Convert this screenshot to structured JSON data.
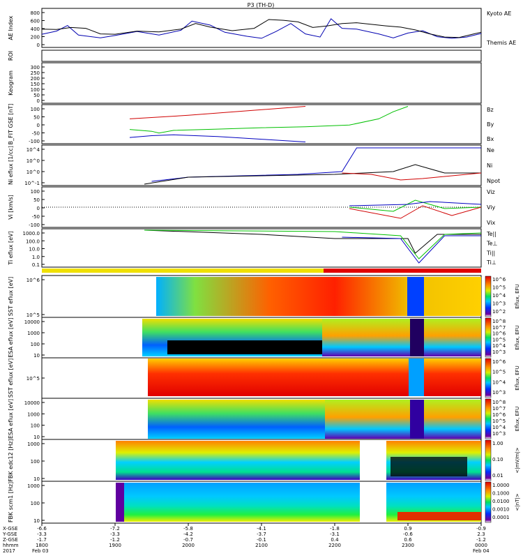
{
  "chart_data": {
    "type": "multi-panel time series",
    "title": "P3 (TH-D)",
    "x_range_hours": [
      18.0,
      24.0
    ],
    "x_ticks": [
      {
        "hhmm": "1800",
        "x_gse": "-6.6",
        "y_gse": "-3.3",
        "z_gse": "-1.7"
      },
      {
        "hhmm": "1900",
        "x_gse": "-7.2",
        "y_gse": "-3.3",
        "z_gse": "-1.2"
      },
      {
        "hhmm": "2000",
        "x_gse": "-5.8",
        "y_gse": "-4.2",
        "z_gse": "-0.7"
      },
      {
        "hhmm": "2100",
        "x_gse": "-4.1",
        "y_gse": "-3.7",
        "z_gse": "-0.1"
      },
      {
        "hhmm": "2200",
        "x_gse": "-1.8",
        "y_gse": "-3.1",
        "z_gse": "0.4"
      },
      {
        "hhmm": "2300",
        "x_gse": "0.9",
        "y_gse": "-0.6",
        "z_gse": "0.6"
      },
      {
        "hhmm": "0000",
        "x_gse": "-0.9",
        "y_gse": "2.3",
        "z_gse": "-1.2"
      }
    ],
    "x_footer": {
      "labels": [
        "X-GSE",
        "Y-GSE",
        "Z-GSE",
        "hhmm"
      ],
      "year": "2017",
      "start_date": "Feb 03",
      "end_date": "Feb 04"
    },
    "panels": [
      {
        "id": "ae",
        "ylabel": "AE Index",
        "yticks": [
          "800",
          "600",
          "400",
          "200",
          "0"
        ],
        "series": [
          {
            "name": "Kyoto AE",
            "color": "#0000b0",
            "x": [
              18.0,
              18.2,
              18.35,
              18.5,
              18.8,
              19.0,
              19.3,
              19.6,
              19.9,
              20.05,
              20.3,
              20.5,
              20.8,
              21.0,
              21.2,
              21.4,
              21.6,
              21.8,
              21.95,
              22.1,
              22.3,
              22.6,
              22.8,
              23.0,
              23.2,
              23.4,
              23.6,
              23.8,
              24.0
            ],
            "y": [
              250,
              330,
              470,
              230,
              160,
              220,
              320,
              230,
              350,
              580,
              480,
              300,
              200,
              150,
              320,
              520,
              260,
              180,
              640,
              400,
              380,
              260,
              160,
              280,
              340,
              190,
              150,
              180,
              270
            ]
          },
          {
            "name": "Themis AE",
            "color": "#000000",
            "x": [
              18.0,
              18.2,
              18.4,
              18.6,
              18.8,
              19.0,
              19.3,
              19.6,
              19.9,
              20.1,
              20.3,
              20.6,
              20.9,
              21.1,
              21.3,
              21.5,
              21.7,
              21.9,
              22.1,
              22.3,
              22.5,
              22.7,
              22.9,
              23.1,
              23.3,
              23.5,
              23.7,
              23.9,
              24.0
            ],
            "y": [
              380,
              370,
              420,
              400,
              260,
              250,
              330,
              310,
              380,
              520,
              430,
              340,
              400,
              620,
              600,
              560,
              420,
              460,
              520,
              540,
              500,
              460,
              430,
              360,
              260,
              180,
              170,
              260,
              300
            ]
          }
        ]
      },
      {
        "id": "roi",
        "ylabel": "ROI"
      },
      {
        "id": "keogram",
        "ylabel": "Keogram",
        "yticks": [
          "300",
          "250",
          "200",
          "150",
          "100",
          "50",
          "0"
        ]
      },
      {
        "id": "bfield",
        "ylabel": "B_FIT GSE [nT]",
        "yticks": [
          "100",
          "50",
          "0",
          "-50",
          "-100"
        ],
        "series": [
          {
            "name": "Bz",
            "color": "#d00000",
            "x": [
              19.2,
              20.0,
              20.8,
              21.6
            ],
            "y": [
              30,
              50,
              75,
              100
            ]
          },
          {
            "name": "By",
            "color": "#00c000",
            "x": [
              19.2,
              19.5,
              19.6,
              19.8,
              20.4,
              21.0,
              21.6,
              22.2,
              22.6,
              22.8,
              23.0
            ],
            "y": [
              -30,
              -40,
              -50,
              -35,
              -28,
              -20,
              -15,
              -5,
              30,
              70,
              100
            ]
          },
          {
            "name": "Bx",
            "color": "#0000c0",
            "x": [
              19.2,
              19.5,
              19.8,
              20.4,
              21.0,
              21.6
            ],
            "y": [
              -75,
              -65,
              -60,
              -70,
              -85,
              -100
            ]
          }
        ]
      },
      {
        "id": "density",
        "ylabel": "Ni eflux [1/cc]",
        "yticks": [
          "10^4",
          "10^0",
          "10^0",
          "10^-1"
        ],
        "series": [
          {
            "name": "Ne",
            "color": "#d00000"
          },
          {
            "name": "Ni",
            "color": "#000000"
          },
          {
            "name": "Npot",
            "color": "#0000c0"
          }
        ]
      },
      {
        "id": "velocity",
        "ylabel": "Vi [km/s]",
        "yticks": [
          "100",
          "50",
          "0",
          "-50",
          "-100"
        ],
        "series": [
          {
            "name": "Viz",
            "color": "#d00000"
          },
          {
            "name": "Viy",
            "color": "#00c000"
          },
          {
            "name": "Vix",
            "color": "#0000c0"
          }
        ]
      },
      {
        "id": "temperature",
        "ylabel": "Ti eflux [eV]",
        "yticks": [
          "1000.0",
          "100.0",
          "10.0",
          "1.0",
          "0.1"
        ],
        "series": [
          {
            "name": "Te||",
            "color": "#000000"
          },
          {
            "name": "Te⊥",
            "color": "#d00000"
          },
          {
            "name": "Ti||",
            "color": "#00c000"
          },
          {
            "name": "Ti⊥",
            "color": "#0000c0"
          }
        ]
      },
      {
        "id": "sst_e",
        "ylabel": "SST eflux [eV]",
        "type": "heatmap",
        "yticks": [
          "10^6",
          "10^5"
        ],
        "cbar_ticks": [
          "10^6",
          "10^5",
          "10^4",
          "10^3",
          "10^2"
        ],
        "cbar_label": "Eflux, EFU"
      },
      {
        "id": "esa_e",
        "ylabel": "ESA eflux [eV]",
        "type": "heatmap",
        "yticks": [
          "10000",
          "1000",
          "100",
          "10"
        ],
        "cbar_ticks": [
          "10^8",
          "10^7",
          "10^6",
          "10^5",
          "10^4",
          "10^3"
        ],
        "cbar_label": "Eflux, EFU"
      },
      {
        "id": "sst_i",
        "ylabel": "SST eflux [eV]",
        "type": "heatmap",
        "yticks": [
          "10^5"
        ],
        "cbar_ticks": [
          "10^6",
          "10^5",
          "10^4",
          "10^3"
        ],
        "cbar_label": "Eflux, EFU"
      },
      {
        "id": "esa_i",
        "ylabel": "ESA eflux [eV]",
        "type": "heatmap",
        "yticks": [
          "10000",
          "1000",
          "100",
          "10"
        ],
        "cbar_ticks": [
          "10^8",
          "10^7",
          "10^6",
          "10^5",
          "10^4",
          "10^3"
        ],
        "cbar_label": "Eflux, EFU"
      },
      {
        "id": "fbk_e",
        "ylabel": "FBK edc12 [Hz]",
        "type": "heatmap",
        "yticks": [
          "1000",
          "100",
          "10"
        ],
        "cbar_ticks": [
          "1.00",
          "0.10",
          "0.01"
        ],
        "cbar_label": "<|mV/m|>"
      },
      {
        "id": "fbk_b",
        "ylabel": "FBK scm1 [Hz]",
        "type": "heatmap",
        "yticks": [
          "1000",
          "100",
          "10"
        ],
        "cbar_ticks": [
          "1.0000",
          "0.1000",
          "0.0100",
          "0.0010",
          "0.0001"
        ],
        "cbar_label": "<|nT|>"
      }
    ]
  }
}
